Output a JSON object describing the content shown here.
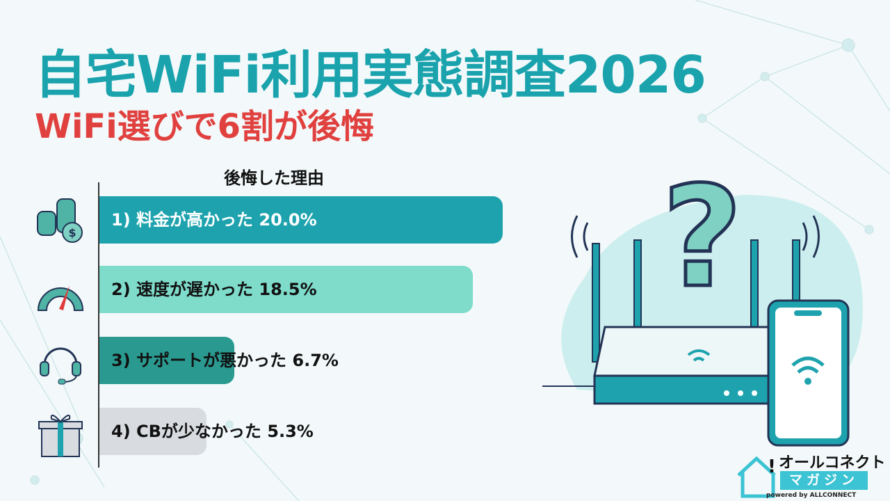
{
  "header": {
    "title": "自宅WiFi利用実態調査2026",
    "subtitle": "WiFi選びで6割が後悔"
  },
  "chart_data": {
    "type": "bar",
    "orientation": "horizontal",
    "title": "後悔した理由",
    "categories": [
      "1) 料金が高かった",
      "2) 速度が遅かった",
      "3) サポートが悪かった",
      "4) CBが少なかった"
    ],
    "values": [
      20.0,
      18.5,
      6.7,
      5.3
    ],
    "unit": "%",
    "labels": [
      "1) 料金が高かった 20.0%",
      "2) 速度が遅かった 18.5%",
      "3) サポートが悪かった 6.7%",
      "4) CBが少なかった 5.3%"
    ],
    "colors": [
      "#1ea3ae",
      "#7fdccb",
      "#2a9a90",
      "#d8dbe0"
    ],
    "icons": [
      "coins-dollar-icon",
      "speedometer-icon",
      "headset-icon",
      "gift-icon"
    ],
    "grid": false
  },
  "logo": {
    "name": "オールコネクト",
    "sub": "マガジン",
    "powered": "powered by ALLCONNECT"
  }
}
